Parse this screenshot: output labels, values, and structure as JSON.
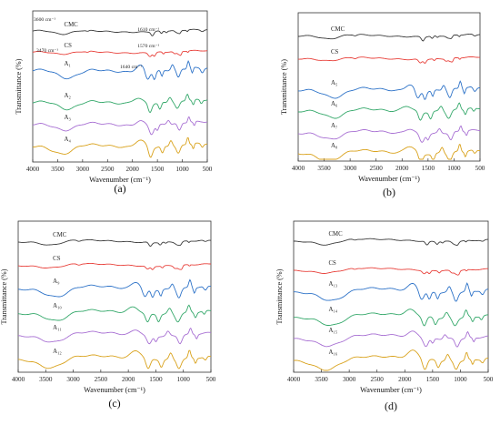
{
  "panels": [
    {
      "label": "(a)",
      "xlabel": "Wavenumber (cm⁻¹)",
      "ylabel": "Transmittance (%)",
      "annotations": [
        "3600 cm⁻¹",
        "1610 cm⁻¹",
        "1570 cm⁻¹",
        "3470 cm⁻¹",
        "1640 cm⁻¹"
      ],
      "series": [
        "CMC",
        "CS",
        "A₁",
        "A₂",
        "A₃",
        "A₄"
      ]
    },
    {
      "label": "(b)",
      "xlabel": "Wavenumber (cm⁻¹)",
      "ylabel": "Transmittance (%)",
      "annotations": [],
      "series": [
        "CMC",
        "CS",
        "A₅",
        "A₆",
        "A₇",
        "A₈"
      ]
    },
    {
      "label": "(c)",
      "xlabel": "Wavenumber (cm⁻¹)",
      "ylabel": "Transmittance (%)",
      "annotations": [],
      "series": [
        "CMC",
        "CS",
        "A₉",
        "A₁₀",
        "A₁₁",
        "A₁₂"
      ]
    },
    {
      "label": "(d)",
      "xlabel": "Wavenumber (cm⁻¹)",
      "ylabel": "Transmittance (%)",
      "annotations": [],
      "series": [
        "CMC",
        "CS",
        "A₁₃",
        "A₁₄",
        "A₁₅",
        "A₁₆"
      ]
    }
  ],
  "chart_data": [
    {
      "type": "line",
      "panel": "(a)",
      "xlim": [
        4000,
        500
      ],
      "x_ticks": [
        "4000",
        "3500",
        "3000",
        "2500",
        "2000",
        "1500",
        "1000",
        "500"
      ],
      "series": [
        {
          "name": "CMC",
          "color": "#3a3a3a"
        },
        {
          "name": "CS",
          "color": "#e8413b"
        },
        {
          "name": "A₁",
          "color": "#2e73c8"
        },
        {
          "name": "A₂",
          "color": "#34a86a"
        },
        {
          "name": "A₃",
          "color": "#a870d3"
        },
        {
          "name": "A₄",
          "color": "#d9a21c"
        }
      ]
    },
    {
      "type": "line",
      "panel": "(b)",
      "xlim": [
        4000,
        500
      ],
      "x_ticks": [
        "4000",
        "3500",
        "3000",
        "2500",
        "2000",
        "1500",
        "1000",
        "500"
      ],
      "series": [
        {
          "name": "CMC",
          "color": "#3a3a3a"
        },
        {
          "name": "CS",
          "color": "#e8413b"
        },
        {
          "name": "A₅",
          "color": "#2e73c8"
        },
        {
          "name": "A₆",
          "color": "#34a86a"
        },
        {
          "name": "A₇",
          "color": "#a870d3"
        },
        {
          "name": "A₈",
          "color": "#d9a21c"
        }
      ]
    },
    {
      "type": "line",
      "panel": "(c)",
      "xlim": [
        4000,
        500
      ],
      "x_ticks": [
        "4000",
        "3500",
        "3000",
        "2500",
        "2000",
        "1500",
        "1000",
        "500"
      ],
      "series": [
        {
          "name": "CMC",
          "color": "#3a3a3a"
        },
        {
          "name": "CS",
          "color": "#e8413b"
        },
        {
          "name": "A₉",
          "color": "#2e73c8"
        },
        {
          "name": "A₁₀",
          "color": "#34a86a"
        },
        {
          "name": "A₁₁",
          "color": "#a870d3"
        },
        {
          "name": "A₁₂",
          "color": "#d9a21c"
        }
      ]
    },
    {
      "type": "line",
      "panel": "(d)",
      "xlim": [
        4000,
        500
      ],
      "x_ticks": [
        "4000",
        "3500",
        "3000",
        "2500",
        "2000",
        "1500",
        "1000",
        "500"
      ],
      "series": [
        {
          "name": "CMC",
          "color": "#3a3a3a"
        },
        {
          "name": "CS",
          "color": "#e8413b"
        },
        {
          "name": "A₁₃",
          "color": "#2e73c8"
        },
        {
          "name": "A₁₄",
          "color": "#34a86a"
        },
        {
          "name": "A₁₅",
          "color": "#a870d3"
        },
        {
          "name": "A₁₆",
          "color": "#d9a21c"
        }
      ]
    }
  ]
}
